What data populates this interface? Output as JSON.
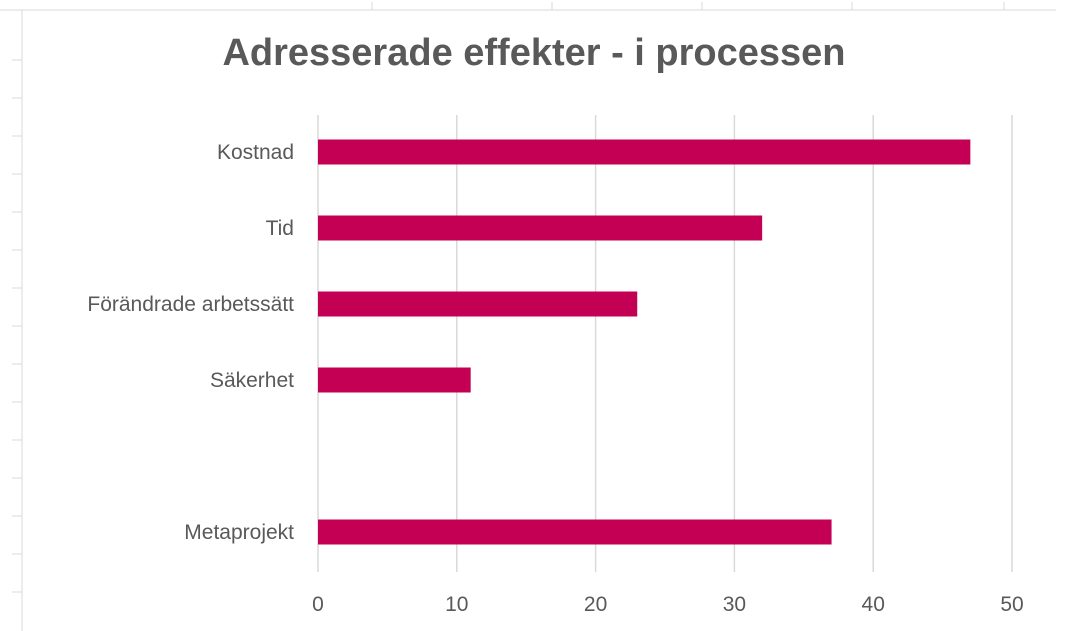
{
  "chart_data": {
    "type": "bar",
    "orientation": "horizontal",
    "title": "Adresserade effekter - i processen",
    "xlabel": "",
    "ylabel": "",
    "categories": [
      "Kostnad",
      "Tid",
      "Förändrade arbetssätt",
      "Säkerhet",
      "",
      "Metaprojekt"
    ],
    "values": [
      47,
      32,
      23,
      11,
      null,
      37
    ],
    "xlim": [
      0,
      50
    ],
    "x_ticks": [
      0,
      10,
      20,
      30,
      40,
      50
    ],
    "grid": "vertical",
    "legend": "none",
    "colors": {
      "bar": "#C40055",
      "grid": "#D9D9D9",
      "text": "#595959",
      "frame": "#D9D9D9"
    }
  }
}
